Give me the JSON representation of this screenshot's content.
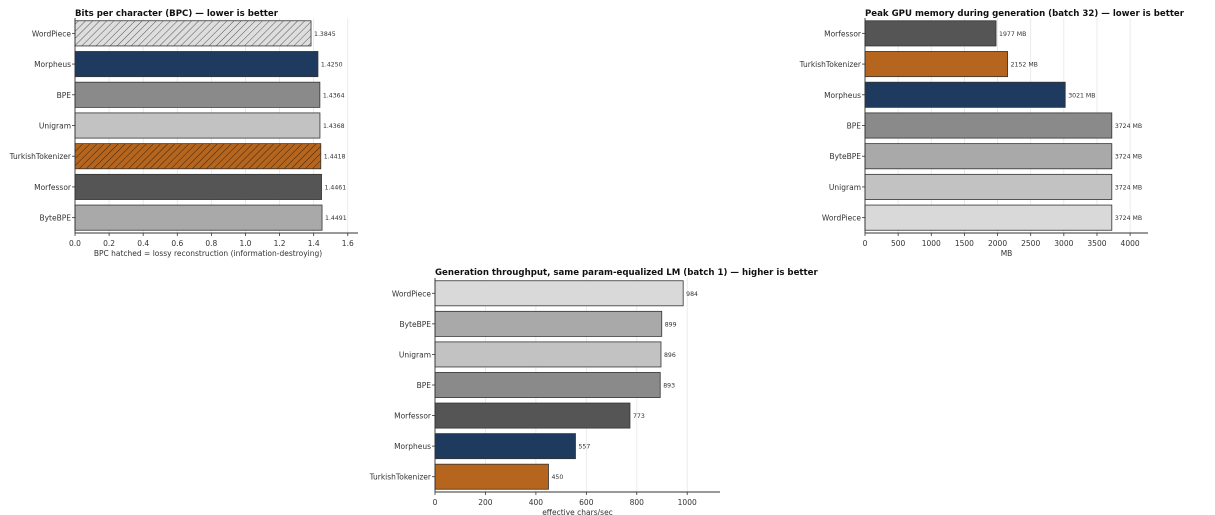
{
  "colors": {
    "WordPiece": "#d9d9d9",
    "Morpheus": "#1f3a5f",
    "BPE": "#8a8a8a",
    "Unigram": "#c2c2c2",
    "TurkishTokenizer": "#b5651d",
    "Morfessor": "#555555",
    "ByteBPE": "#a9a9a9",
    "WordPiece_bpc": "#dedede",
    "bar_edge": "#333333",
    "axis": "#333333",
    "grid": "#e6e6e6",
    "text": "#333333"
  },
  "chart_data": [
    {
      "type": "bar",
      "orientation": "horizontal",
      "title": "Bits per character (BPC) — lower is better",
      "xlabel": "BPC     hatched = lossy reconstruction (information-destroying)",
      "categories": [
        "WordPiece",
        "Morpheus",
        "BPE",
        "Unigram",
        "TurkishTokenizer",
        "Morfessor",
        "ByteBPE"
      ],
      "values": [
        1.3845,
        1.425,
        1.4364,
        1.4368,
        1.4418,
        1.4461,
        1.4491
      ],
      "value_labels": [
        "1.3845",
        "1.4250",
        "1.4364",
        "1.4368",
        "1.4418",
        "1.4461",
        "1.4491"
      ],
      "hatched": [
        "WordPiece",
        "TurkishTokenizer"
      ],
      "xlim": [
        0,
        1.66
      ],
      "xticks": [
        0.0,
        0.2,
        0.4,
        0.6,
        0.8,
        1.0,
        1.2,
        1.4,
        1.6
      ],
      "xtick_labels": [
        "0.0",
        "0.2",
        "0.4",
        "0.6",
        "0.8",
        "1.0",
        "1.2",
        "1.4",
        "1.6"
      ],
      "grid": true
    },
    {
      "type": "bar",
      "orientation": "horizontal",
      "title": "Peak GPU memory during generation (batch 32) — lower is better",
      "xlabel": "MB",
      "categories": [
        "Morfessor",
        "TurkishTokenizer",
        "Morpheus",
        "BPE",
        "ByteBPE",
        "Unigram",
        "WordPiece"
      ],
      "values": [
        1977,
        2152,
        3021,
        3724,
        3724,
        3724,
        3724
      ],
      "value_labels": [
        "1977 MB",
        "2152 MB",
        "3021 MB",
        "3724 MB",
        "3724 MB",
        "3724 MB",
        "3724 MB"
      ],
      "xlim": [
        0,
        4270
      ],
      "xticks": [
        0,
        500,
        1000,
        1500,
        2000,
        2500,
        3000,
        3500,
        4000
      ],
      "xtick_labels": [
        "0",
        "500",
        "1000",
        "1500",
        "2000",
        "2500",
        "3000",
        "3500",
        "4000"
      ],
      "grid": true
    },
    {
      "type": "bar",
      "orientation": "horizontal",
      "title": "Generation throughput, same param-equalized LM (batch 1) — higher is better",
      "xlabel": "effective chars/sec",
      "categories": [
        "WordPiece",
        "ByteBPE",
        "Unigram",
        "BPE",
        "Morfessor",
        "Morpheus",
        "TurkishTokenizer"
      ],
      "values": [
        984,
        899,
        896,
        893,
        773,
        557,
        450
      ],
      "value_labels": [
        "984",
        "899",
        "896",
        "893",
        "773",
        "557",
        "450"
      ],
      "xlim": [
        0,
        1130
      ],
      "xticks": [
        0,
        200,
        400,
        600,
        800,
        1000
      ],
      "xtick_labels": [
        "0",
        "200",
        "400",
        "600",
        "800",
        "1000"
      ],
      "grid": true
    }
  ]
}
